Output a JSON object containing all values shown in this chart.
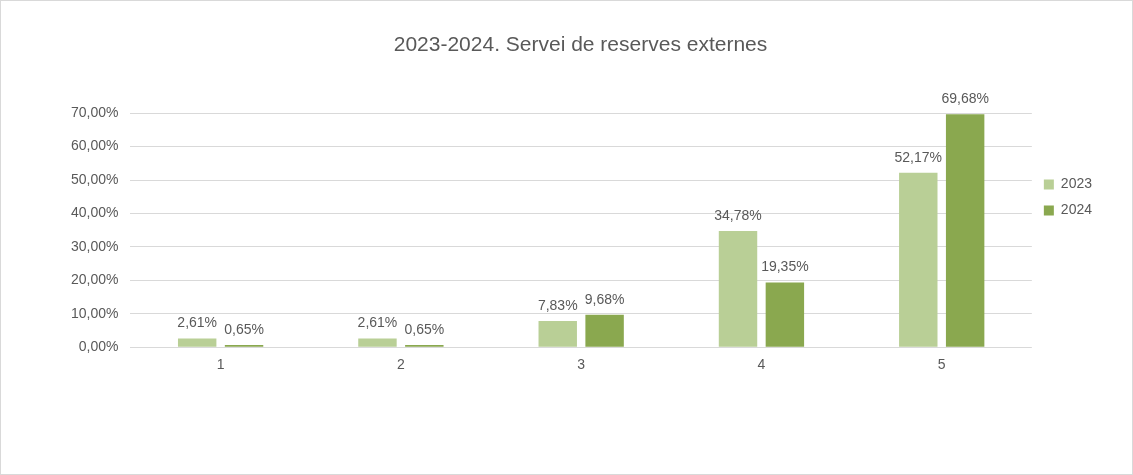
{
  "chart_data": {
    "type": "bar",
    "title": "2023-2024. Servei de reserves externes",
    "categories": [
      "1",
      "2",
      "3",
      "4",
      "5"
    ],
    "series": [
      {
        "name": "2023",
        "color": "#b9cf96",
        "values": [
          2.61,
          2.61,
          7.83,
          34.78,
          52.17
        ],
        "value_labels": [
          "2,61%",
          "2,61%",
          "7,83%",
          "34,78%",
          "52,17%"
        ]
      },
      {
        "name": "2024",
        "color": "#8aa84f",
        "values": [
          0.65,
          0.65,
          9.68,
          19.35,
          69.68
        ],
        "value_labels": [
          "0,65%",
          "0,65%",
          "9,68%",
          "19,35%",
          "69,68%"
        ]
      }
    ],
    "ylim": [
      0,
      70
    ],
    "yticks": [
      {
        "value": 0,
        "label": "0,00%"
      },
      {
        "value": 10,
        "label": "10,00%"
      },
      {
        "value": 20,
        "label": "20,00%"
      },
      {
        "value": 30,
        "label": "30,00%"
      },
      {
        "value": 40,
        "label": "40,00%"
      },
      {
        "value": 50,
        "label": "50,00%"
      },
      {
        "value": 60,
        "label": "60,00%"
      },
      {
        "value": 70,
        "label": "70,00%"
      }
    ],
    "grid": "y",
    "legend": "right"
  }
}
